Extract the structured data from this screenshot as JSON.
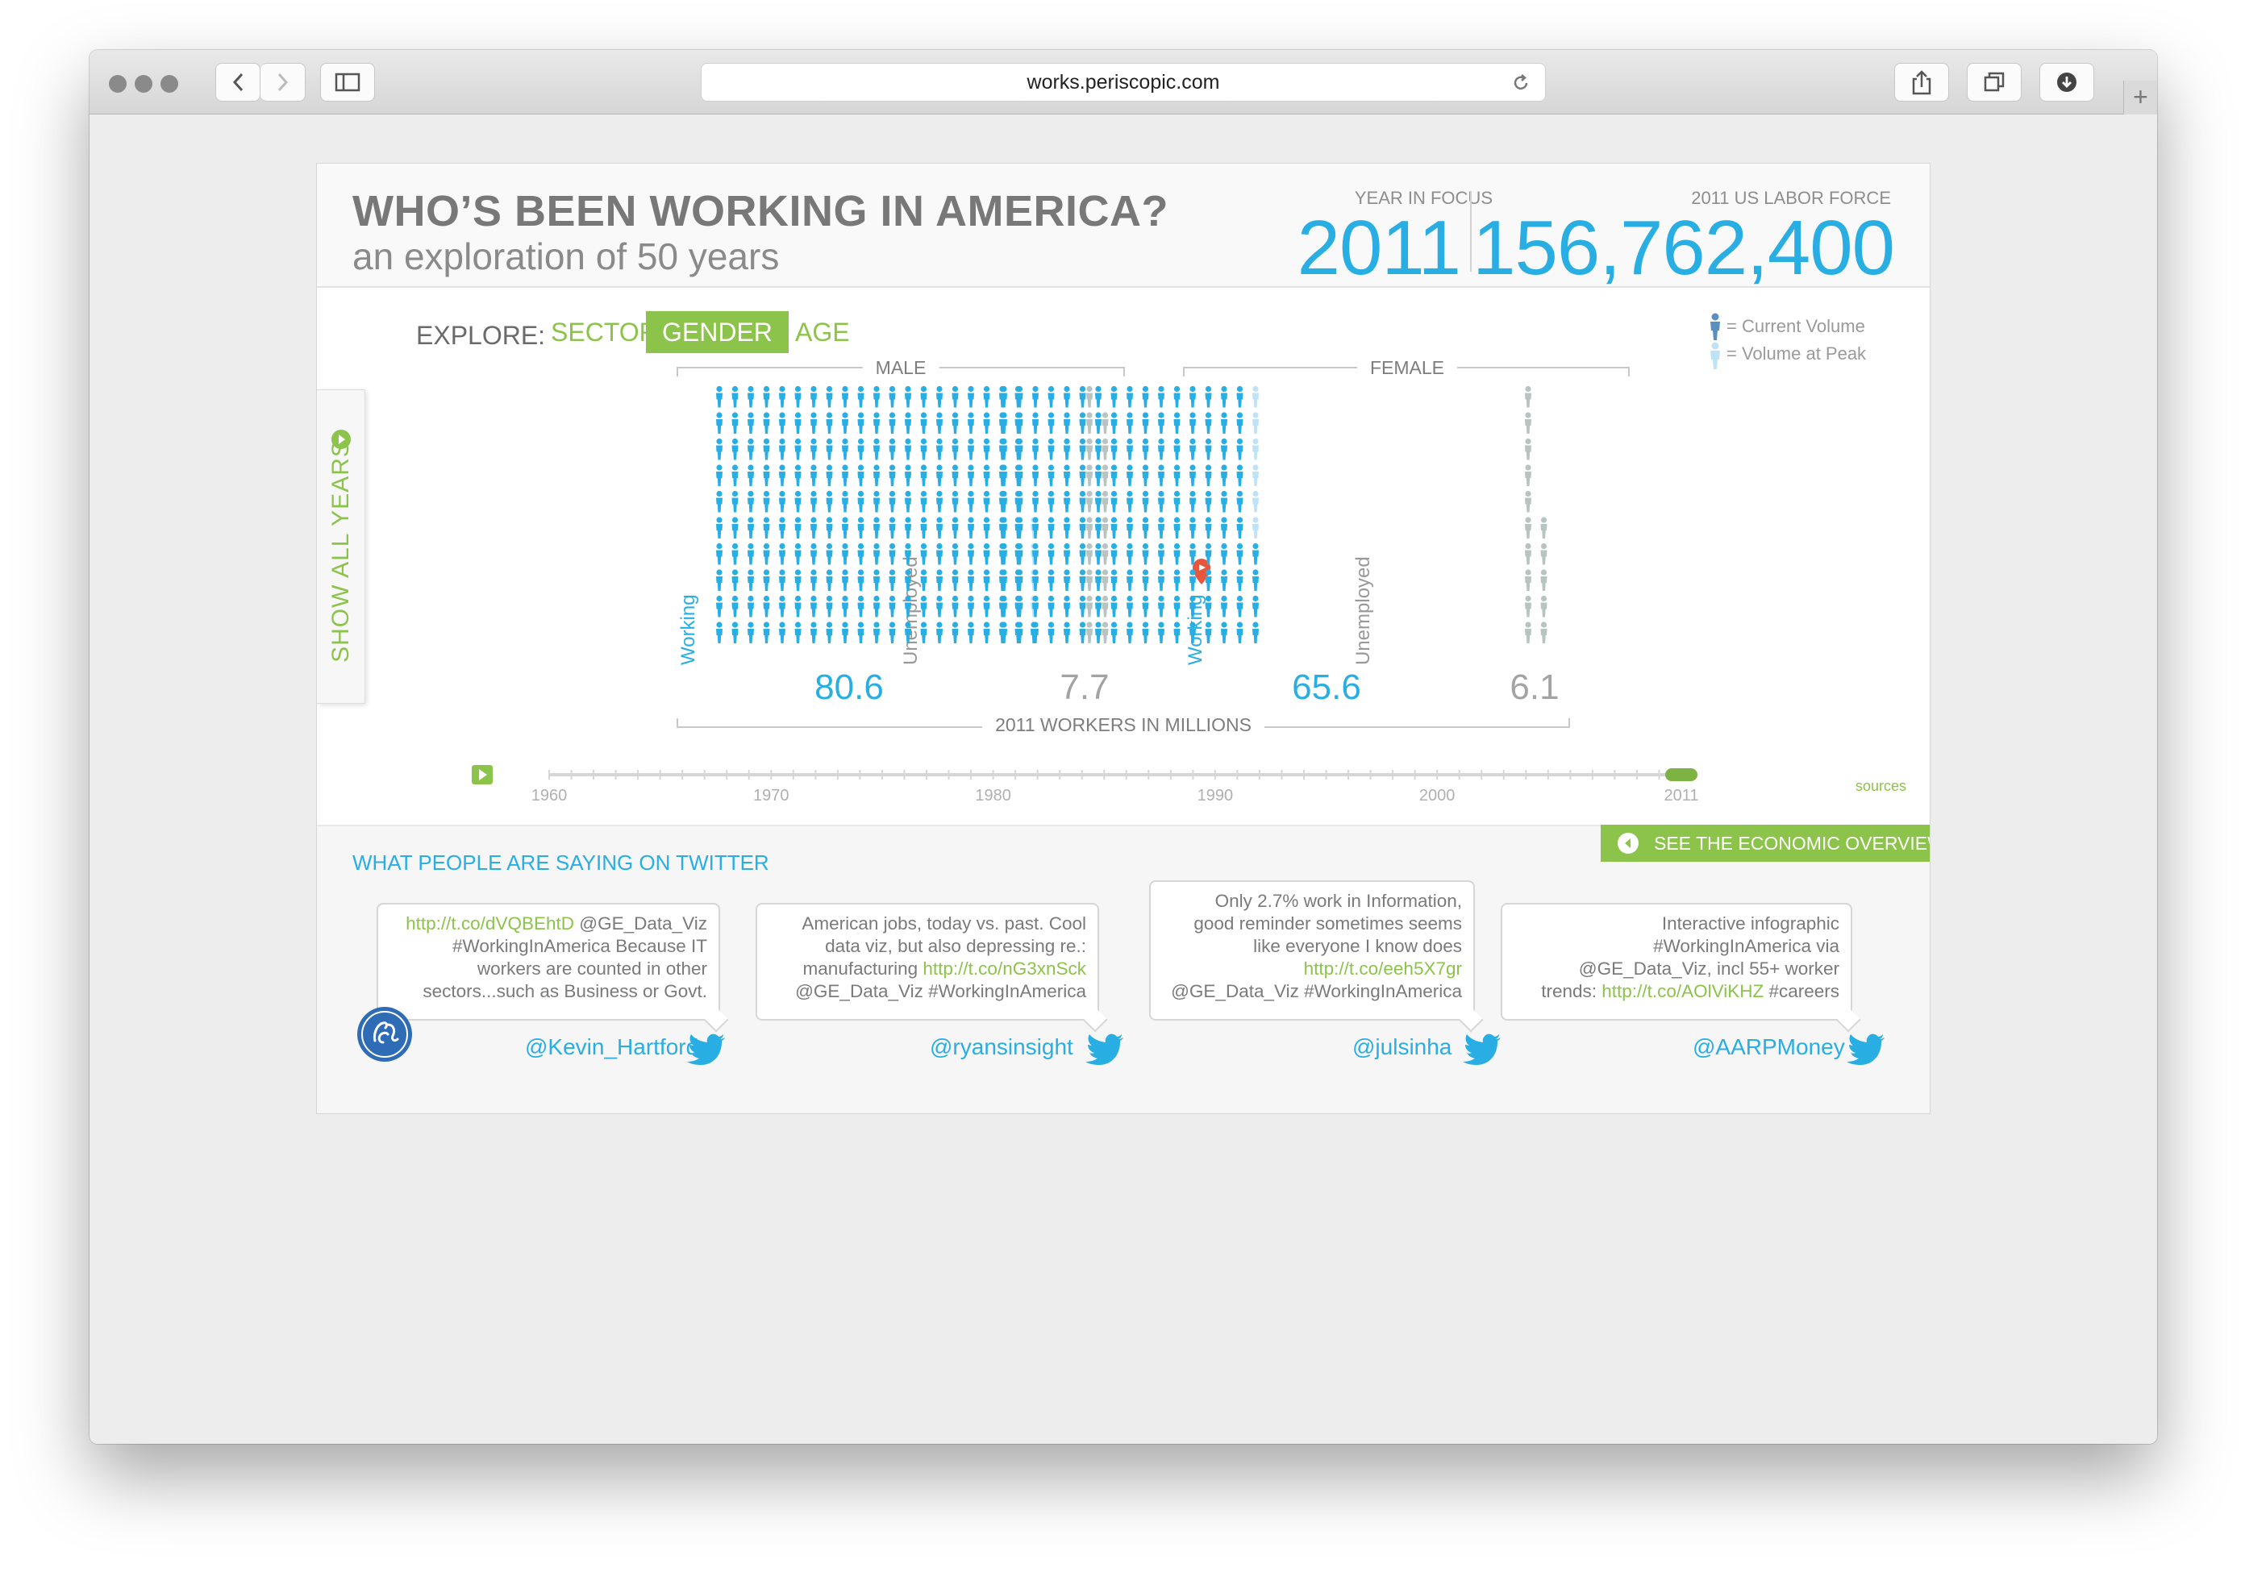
{
  "browser": {
    "url": "works.periscopic.com"
  },
  "header": {
    "title": "WHO’S BEEN WORKING IN AMERICA?",
    "subtitle": "an exploration of 50 years",
    "year_label": "YEAR IN FOCUS",
    "year_value": "2011",
    "labor_label": "2011 US LABOR FORCE",
    "labor_value": "156,762,400"
  },
  "explore": {
    "label": "EXPLORE:",
    "tabs": [
      {
        "label": "SECTOR",
        "active": false
      },
      {
        "label": "GENDER",
        "active": true
      },
      {
        "label": "AGE",
        "active": false
      }
    ]
  },
  "legend": {
    "current": "= Current Volume",
    "peak": "= Volume at Peak"
  },
  "side_tab": {
    "label": "SHOW ALL YEARS"
  },
  "groups": [
    {
      "name": "MALE",
      "working_label": "Working",
      "unemployed_label": "Unemployed",
      "working": "80.6",
      "unemployed": "7.7"
    },
    {
      "name": "FEMALE",
      "working_label": "Working",
      "unemployed_label": "Unemployed",
      "working": "65.6",
      "unemployed": "6.1"
    }
  ],
  "units_label": "2011 WORKERS IN MILLIONS",
  "timeline": {
    "ticks": [
      "1960",
      "1970",
      "1980",
      "1990",
      "2000",
      "2011"
    ],
    "selected_year": "2011",
    "sources": "sources"
  },
  "twitter": {
    "heading": "WHAT PEOPLE ARE SAYING ON TWITTER",
    "econ_button": "SEE THE ECONOMIC OVERVIEW",
    "tweets": [
      {
        "lines": [
          [
            "link",
            "http://t.co/dVQBEhtD"
          ],
          [
            "text",
            " @GE_Data_Viz"
          ],
          [
            "br"
          ],
          [
            "text",
            "#WorkingInAmerica Because IT"
          ],
          [
            "br"
          ],
          [
            "text",
            "workers are counted in other"
          ],
          [
            "br"
          ],
          [
            "text",
            "sectors...such as Business or Govt."
          ]
        ],
        "handle": "@Kevin_Hartford"
      },
      {
        "lines": [
          [
            "text",
            "American jobs, today vs. past. Cool"
          ],
          [
            "br"
          ],
          [
            "text",
            "data viz, but also depressing re.:"
          ],
          [
            "br"
          ],
          [
            "text",
            "manufacturing "
          ],
          [
            "link",
            "http://t.co/nG3xnSck"
          ],
          [
            "br"
          ],
          [
            "text",
            "@GE_Data_Viz #WorkingInAmerica"
          ]
        ],
        "handle": "@ryansinsight"
      },
      {
        "lines": [
          [
            "text",
            "Only 2.7% work in Information,"
          ],
          [
            "br"
          ],
          [
            "text",
            "good reminder sometimes seems"
          ],
          [
            "br"
          ],
          [
            "text",
            "like everyone I know does"
          ],
          [
            "br"
          ],
          [
            "link",
            "http://t.co/eeh5X7gr"
          ],
          [
            "br"
          ],
          [
            "text",
            "@GE_Data_Viz #WorkingInAmerica"
          ]
        ],
        "handle": "@julsinha"
      },
      {
        "lines": [
          [
            "text",
            "Interactive infographic"
          ],
          [
            "br"
          ],
          [
            "text",
            "#WorkingInAmerica via"
          ],
          [
            "br"
          ],
          [
            "text",
            "@GE_Data_Viz, incl 55+ worker"
          ],
          [
            "br"
          ],
          [
            "text",
            "trends: "
          ],
          [
            "link",
            "http://t.co/AOlViKHZ"
          ],
          [
            "text",
            " #careers"
          ]
        ],
        "handle": "@AARPMoney"
      }
    ]
  },
  "chart_data": {
    "type": "pictograph",
    "units": "2011 WORKERS IN MILLIONS",
    "categories": [
      "MALE",
      "FEMALE"
    ],
    "series": [
      {
        "name": "Working",
        "values": [
          80.6,
          65.6
        ]
      },
      {
        "name": "Unemployed",
        "values": [
          7.7,
          6.1
        ]
      }
    ]
  },
  "colors": {
    "blue": "#29aee4",
    "green": "#8cc34a",
    "gray": "#b8c4c2",
    "peak": "#bfe3f6"
  }
}
